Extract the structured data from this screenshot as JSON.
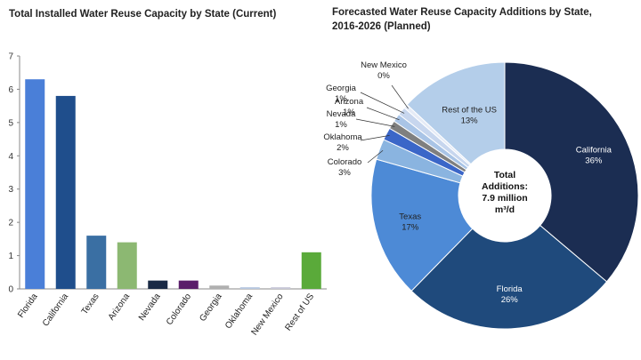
{
  "chart_data": [
    {
      "type": "bar",
      "title": "Total Installed Water Reuse Capacity by State (Current)",
      "xlabel": "",
      "ylabel": "",
      "ylim": [
        0,
        7
      ],
      "yticks": [
        "0",
        "1",
        "2",
        "3",
        "4",
        "5",
        "6",
        "7"
      ],
      "grid": false,
      "categories": [
        "Florida",
        "California",
        "Texas",
        "Arizona",
        "Nevada",
        "Colorado",
        "Georgia",
        "Oklahoma",
        "New Mexico",
        "Rest of US"
      ],
      "values": [
        6.3,
        5.8,
        1.6,
        1.4,
        0.25,
        0.25,
        0.1,
        0.05,
        0.05,
        1.1
      ],
      "colors": [
        "#4a7fd8",
        "#1f4e8c",
        "#3a6fa3",
        "#8cb872",
        "#1a2a45",
        "#5a1e6a",
        "#b0b0b0",
        "#b8c8e0",
        "#c8c8d8",
        "#5aaa3a"
      ]
    },
    {
      "type": "pie",
      "title_line1": "Forecasted Water Reuse Capacity Additions by State,",
      "title_line2": "2016-2026 (Planned)",
      "center_label": [
        "Total",
        "Additions:",
        "7.9 million",
        "m³/d"
      ],
      "slices": [
        {
          "label": "California",
          "pct_label": "36%",
          "value": 36,
          "color": "#1b2d52",
          "text_color": "#ffffff"
        },
        {
          "label": "Florida",
          "pct_label": "26%",
          "value": 26,
          "color": "#1f4a7c",
          "text_color": "#ffffff"
        },
        {
          "label": "Texas",
          "pct_label": "17%",
          "value": 17,
          "color": "#4d8ad6",
          "text_color": "#222222"
        },
        {
          "label": "Colorado",
          "pct_label": "3%",
          "value": 2.5,
          "color": "#8ab4e0",
          "text_color": "#222222"
        },
        {
          "label": "Oklahoma",
          "pct_label": "2%",
          "value": 1.5,
          "color": "#3b66c8",
          "text_color": "#222222"
        },
        {
          "label": "Nevada",
          "pct_label": "1%",
          "value": 1.0,
          "color": "#7f7f7f",
          "text_color": "#222222"
        },
        {
          "label": "Arizona",
          "pct_label": "1%",
          "value": 1.0,
          "color": "#a9c4e6",
          "text_color": "#222222"
        },
        {
          "label": "Georgia",
          "pct_label": "1%",
          "value": 1.0,
          "color": "#c7d6ee",
          "text_color": "#222222"
        },
        {
          "label": "New Mexico",
          "pct_label": "0%",
          "value": 0.5,
          "color": "#e5ebf6",
          "text_color": "#222222"
        },
        {
          "label": "Rest of the US",
          "pct_label": "13%",
          "value": 13,
          "color": "#b4ceea",
          "text_color": "#222222"
        }
      ]
    }
  ]
}
